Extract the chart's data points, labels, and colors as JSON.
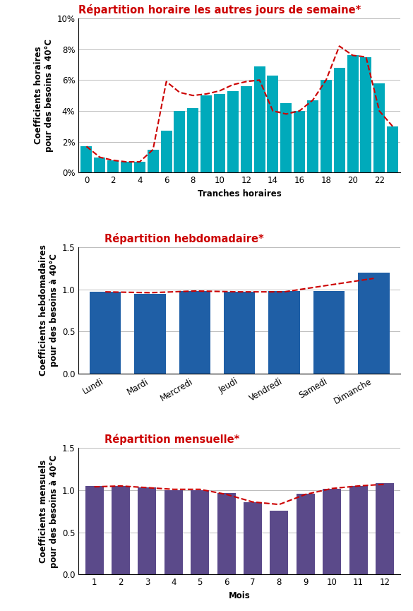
{
  "chart1": {
    "title": "Répartition horaire les autres jours de semaine*",
    "xlabel": "Tranches horaires",
    "ylabel": "Coefficients horaires\npour des besoins à 40°C",
    "bar_color": "#00AABB",
    "line_color": "#CC0000",
    "ylim": [
      0,
      0.1
    ],
    "yticks": [
      0,
      0.02,
      0.04,
      0.06,
      0.08,
      0.1
    ],
    "ytick_labels": [
      "0%",
      "2%",
      "4%",
      "6%",
      "8%",
      "10%"
    ],
    "bar_values": [
      0.017,
      0.01,
      0.008,
      0.007,
      0.007,
      0.015,
      0.027,
      0.04,
      0.042,
      0.05,
      0.051,
      0.053,
      0.056,
      0.069,
      0.063,
      0.045,
      0.04,
      0.047,
      0.06,
      0.068,
      0.076,
      0.075,
      0.058,
      0.03
    ],
    "line_values": [
      0.017,
      0.01,
      0.008,
      0.007,
      0.007,
      0.015,
      0.059,
      0.052,
      0.05,
      0.051,
      0.053,
      0.057,
      0.059,
      0.06,
      0.04,
      0.038,
      0.04,
      0.047,
      0.06,
      0.082,
      0.076,
      0.075,
      0.04,
      0.03
    ],
    "xtick_positions": [
      0,
      2,
      4,
      6,
      8,
      10,
      12,
      14,
      16,
      18,
      20,
      22
    ],
    "xtick_labels": [
      "0",
      "2",
      "4",
      "6",
      "8",
      "10",
      "12",
      "14",
      "16",
      "18",
      "20",
      "22"
    ]
  },
  "chart2": {
    "title": "Répartition hebdomadaire*",
    "ylabel": "Coefficients hebdomadaires\npour des besoins à 40°C",
    "bar_color": "#1F5FA6",
    "line_color": "#CC0000",
    "ylim": [
      0,
      1.5
    ],
    "yticks": [
      0.0,
      0.5,
      1.0,
      1.5
    ],
    "categories": [
      "Lundi",
      "Mardi",
      "Mercredi",
      "Jeudi",
      "Vendredi",
      "Samedi",
      "Dimanche"
    ],
    "bar_values": [
      0.97,
      0.95,
      0.98,
      0.97,
      0.98,
      0.98,
      1.2
    ],
    "line_values": [
      0.97,
      0.96,
      0.98,
      0.97,
      0.97,
      1.05,
      1.13
    ]
  },
  "chart3": {
    "title": "Répartition mensuelle*",
    "xlabel": "Mois",
    "ylabel": "Coefficients mensuels\npour des besoins à 40°C",
    "bar_color": "#5B4A8A",
    "line_color": "#CC0000",
    "ylim": [
      0,
      1.5
    ],
    "yticks": [
      0.0,
      0.5,
      1.0,
      1.5
    ],
    "xticks": [
      1,
      2,
      3,
      4,
      5,
      6,
      7,
      8,
      9,
      10,
      11,
      12
    ],
    "bar_values": [
      1.05,
      1.05,
      1.03,
      1.0,
      1.0,
      0.97,
      0.86,
      0.76,
      0.96,
      1.02,
      1.05,
      1.08
    ],
    "line_values": [
      1.04,
      1.05,
      1.03,
      1.01,
      1.01,
      0.95,
      0.86,
      0.83,
      0.95,
      1.02,
      1.05,
      1.07
    ]
  },
  "title_fontsize": 10.5,
  "axis_label_fontsize": 8.5,
  "tick_fontsize": 8.5,
  "bg_color": "#FFFFFF",
  "grid_color": "#BBBBBB"
}
